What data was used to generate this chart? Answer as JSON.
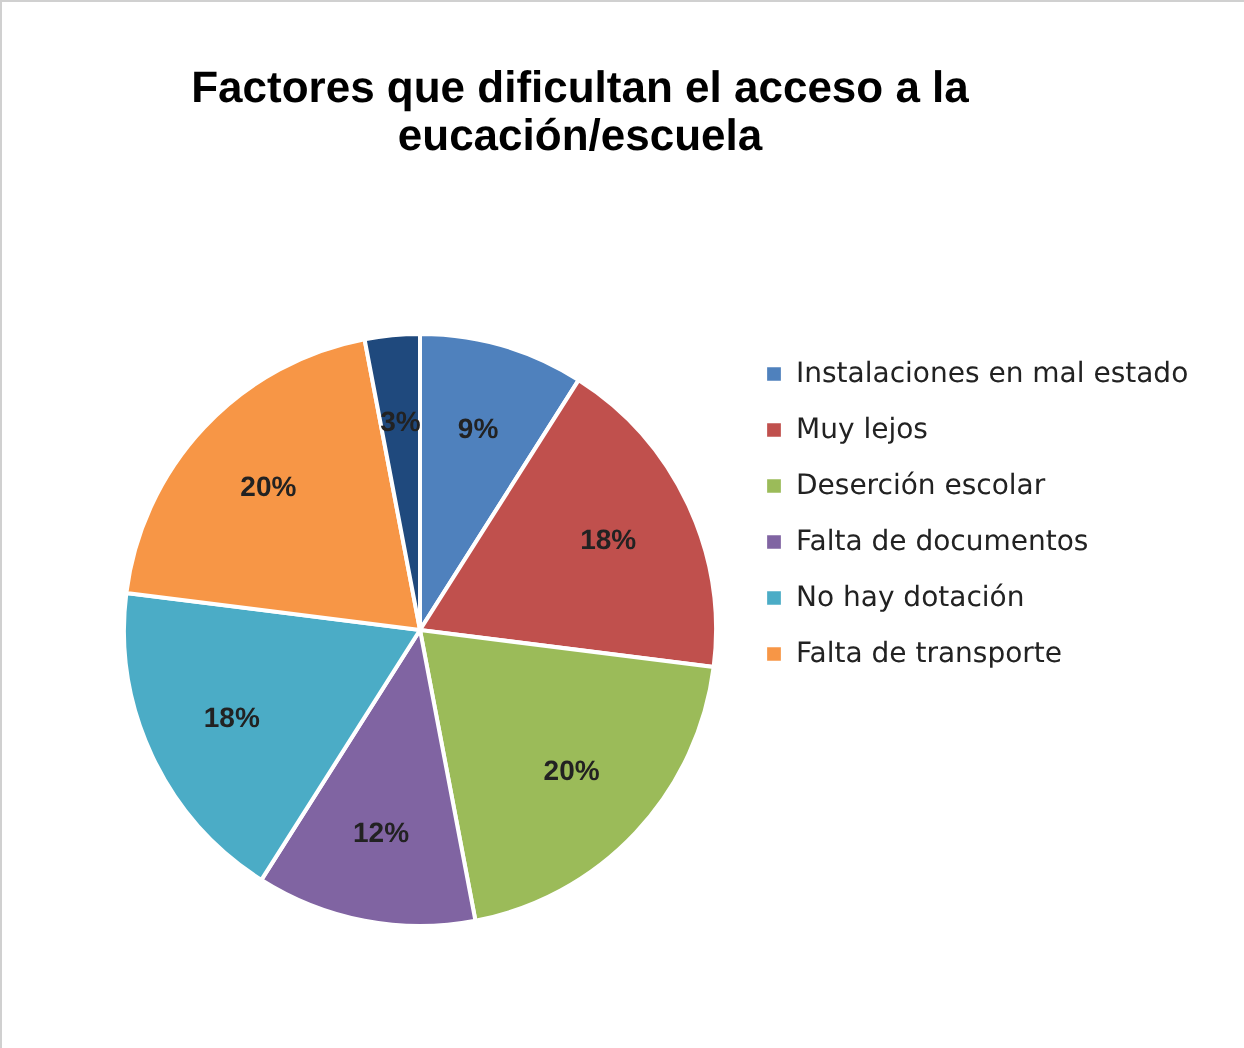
{
  "chart_data": {
    "type": "pie",
    "title": "Factores que dificultan el acceso a la\neucación/escuela",
    "categories": [
      "Instalaciones en mal estado",
      "Muy lejos",
      "Deserción escolar",
      "Falta de documentos",
      "No hay dotación",
      "Falta de transporte",
      null
    ],
    "values": [
      9,
      18,
      20,
      12,
      18,
      20,
      3
    ],
    "value_labels": [
      "9%",
      "18%",
      "20%",
      "12%",
      "18%",
      "20%",
      "3%"
    ],
    "colors": [
      "#4f81bd",
      "#c0504d",
      "#9bbb59",
      "#8064a2",
      "#4bacc6",
      "#f79646",
      "#1f497d"
    ],
    "legend": "right"
  }
}
